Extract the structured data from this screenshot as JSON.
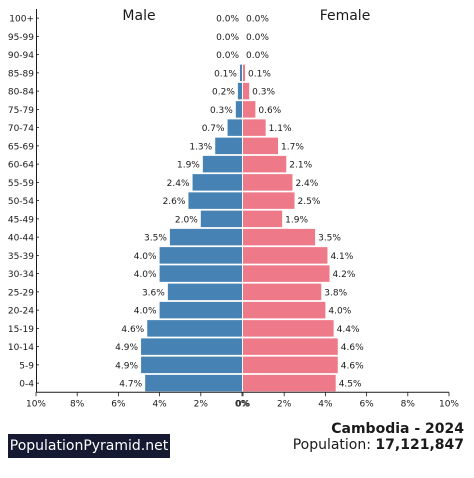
{
  "chart_data": {
    "type": "bar",
    "orientation": "horizontal-pyramid",
    "categories": [
      "100+",
      "95-99",
      "90-94",
      "85-89",
      "80-84",
      "75-79",
      "70-74",
      "65-69",
      "60-64",
      "55-59",
      "50-54",
      "45-49",
      "40-44",
      "35-39",
      "30-34",
      "25-29",
      "20-24",
      "15-19",
      "10-14",
      "5-9",
      "0-4"
    ],
    "series": [
      {
        "name": "Male",
        "color": "#4682b4",
        "values": [
          0.0,
          0.0,
          0.0,
          0.1,
          0.2,
          0.3,
          0.7,
          1.3,
          1.9,
          2.4,
          2.6,
          2.0,
          3.5,
          4.0,
          4.0,
          3.6,
          4.0,
          4.6,
          4.9,
          4.9,
          4.7
        ],
        "labels": [
          "0.0%",
          "0.0%",
          "0.0%",
          "0.1%",
          "0.2%",
          "0.3%",
          "0.7%",
          "1.3%",
          "1.9%",
          "2.4%",
          "2.6%",
          "2.0%",
          "3.5%",
          "4.0%",
          "4.0%",
          "3.6%",
          "4.0%",
          "4.6%",
          "4.9%",
          "4.9%",
          "4.7%"
        ]
      },
      {
        "name": "Female",
        "color": "#ee7989",
        "values": [
          0.0,
          0.0,
          0.0,
          0.1,
          0.3,
          0.6,
          1.1,
          1.7,
          2.1,
          2.4,
          2.5,
          1.9,
          3.5,
          4.1,
          4.2,
          3.8,
          4.0,
          4.4,
          4.6,
          4.6,
          4.5
        ],
        "labels": [
          "0.0%",
          "0.0%",
          "0.0%",
          "0.1%",
          "0.3%",
          "0.6%",
          "1.1%",
          "1.7%",
          "2.1%",
          "2.4%",
          "2.5%",
          "1.9%",
          "3.5%",
          "4.1%",
          "4.2%",
          "3.8%",
          "4.0%",
          "4.4%",
          "4.6%",
          "4.6%",
          "4.5%"
        ]
      }
    ],
    "xlim": [
      0,
      10
    ],
    "x_ticks_left": [
      "10%",
      "8%",
      "6%",
      "4%",
      "2%",
      "0%"
    ],
    "x_ticks_right": [
      "0%",
      "2%",
      "4%",
      "6%",
      "8%",
      "10%"
    ],
    "legend": {
      "male": "Male",
      "female": "Female"
    },
    "grid": false
  },
  "brand": "PopulationPyramid.net",
  "country_line": "Cambodia - 2024",
  "population_label": "Population: ",
  "population_value": "17,121,847"
}
